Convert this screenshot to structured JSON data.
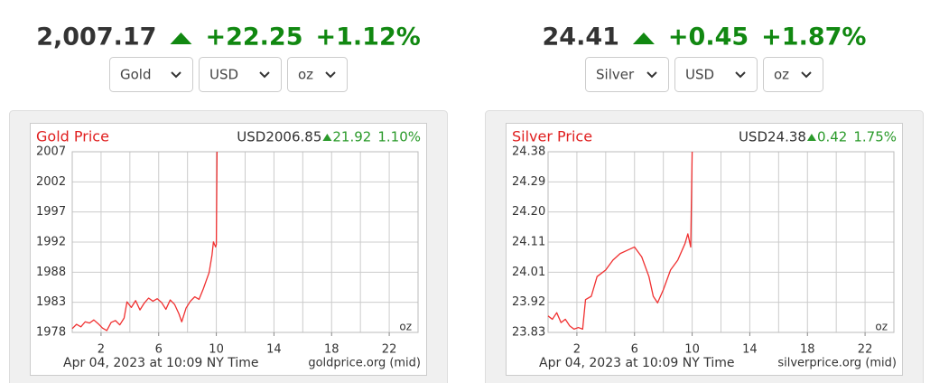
{
  "widgets": [
    {
      "price": "2,007.17",
      "change": "+22.25",
      "change_pct": "+1.12%",
      "selects": [
        "Gold",
        "USD",
        "oz"
      ]
    },
    {
      "price": "24.41",
      "change": "+0.45",
      "change_pct": "+1.87%",
      "selects": [
        "Silver",
        "USD",
        "oz"
      ]
    }
  ],
  "chart_data": [
    {
      "type": "line",
      "title": "Gold Price",
      "price": "USD2006.85",
      "change": "21.92",
      "change_pct": "1.10%",
      "unit": "oz",
      "timestamp": "Apr 04, 2023 at 10:09 NY Time",
      "source": "goldprice.org (mid)",
      "color": "#f03030",
      "grid": true,
      "xlim": [
        0,
        24
      ],
      "xticks": [
        2,
        6,
        10,
        14,
        18,
        22
      ],
      "xgrid": [
        2,
        4,
        6,
        8,
        10,
        12,
        14,
        16,
        18,
        20,
        22
      ],
      "ylim": [
        1977.9,
        2006.85
      ],
      "yticks": [
        {
          "value": 1977.9,
          "label": "1978"
        },
        {
          "value": 1982.725,
          "label": "1983"
        },
        {
          "value": 1987.55,
          "label": "1988"
        },
        {
          "value": 1992.375,
          "label": "1992"
        },
        {
          "value": 1997.2,
          "label": "1997"
        },
        {
          "value": 2002.025,
          "label": "2002"
        },
        {
          "value": 2006.85,
          "label": "2007"
        }
      ],
      "x": [
        0,
        0.3,
        0.6,
        0.9,
        1.2,
        1.5,
        1.8,
        2.1,
        2.4,
        2.7,
        3.0,
        3.3,
        3.6,
        3.8,
        4.1,
        4.4,
        4.7,
        5.0,
        5.3,
        5.6,
        5.9,
        6.2,
        6.5,
        6.8,
        7.1,
        7.4,
        7.6,
        7.9,
        8.2,
        8.5,
        8.8,
        9.1,
        9.3,
        9.5,
        9.7,
        9.8,
        9.95,
        10.0,
        10.05
      ],
      "values": [
        1978.5,
        1979.2,
        1978.8,
        1979.6,
        1979.4,
        1979.9,
        1979.3,
        1978.6,
        1978.2,
        1979.5,
        1979.8,
        1979.1,
        1980.2,
        1982.8,
        1981.9,
        1983.0,
        1981.5,
        1982.6,
        1983.4,
        1982.9,
        1983.3,
        1982.7,
        1981.6,
        1983.1,
        1982.4,
        1980.9,
        1979.6,
        1981.8,
        1982.9,
        1983.6,
        1983.2,
        1984.9,
        1986.2,
        1987.5,
        1990.3,
        1992.4,
        1991.6,
        1992.0,
        2006.85
      ]
    },
    {
      "type": "line",
      "title": "Silver Price",
      "price": "USD24.38",
      "change": "0.42",
      "change_pct": "1.75%",
      "unit": "oz",
      "timestamp": "Apr 04, 2023 at 10:09 NY Time",
      "source": "silverprice.org (mid)",
      "color": "#f03030",
      "grid": true,
      "xlim": [
        0,
        24
      ],
      "xticks": [
        2,
        6,
        10,
        14,
        18,
        22
      ],
      "xgrid": [
        2,
        4,
        6,
        8,
        10,
        12,
        14,
        16,
        18,
        20,
        22
      ],
      "ylim": [
        23.83,
        24.38
      ],
      "yticks": [
        {
          "value": 23.83,
          "label": "23.83"
        },
        {
          "value": 23.9217,
          "label": "23.92"
        },
        {
          "value": 24.0133,
          "label": "24.01"
        },
        {
          "value": 24.105,
          "label": "24.11"
        },
        {
          "value": 24.1967,
          "label": "24.20"
        },
        {
          "value": 24.2883,
          "label": "24.29"
        },
        {
          "value": 24.38,
          "label": "24.38"
        }
      ],
      "x": [
        0,
        0.3,
        0.6,
        0.9,
        1.2,
        1.5,
        1.8,
        2.1,
        2.4,
        2.6,
        3.0,
        3.4,
        3.7,
        4.0,
        4.5,
        5.0,
        5.5,
        6.0,
        6.5,
        7.0,
        7.3,
        7.6,
        8.0,
        8.5,
        9.0,
        9.5,
        9.7,
        9.9,
        10.0
      ],
      "values": [
        23.88,
        23.87,
        23.89,
        23.86,
        23.87,
        23.85,
        23.84,
        23.845,
        23.84,
        23.93,
        23.94,
        24.0,
        24.01,
        24.02,
        24.05,
        24.07,
        24.08,
        24.09,
        24.06,
        24.0,
        23.94,
        23.92,
        23.96,
        24.02,
        24.05,
        24.1,
        24.13,
        24.09,
        24.38
      ]
    }
  ]
}
